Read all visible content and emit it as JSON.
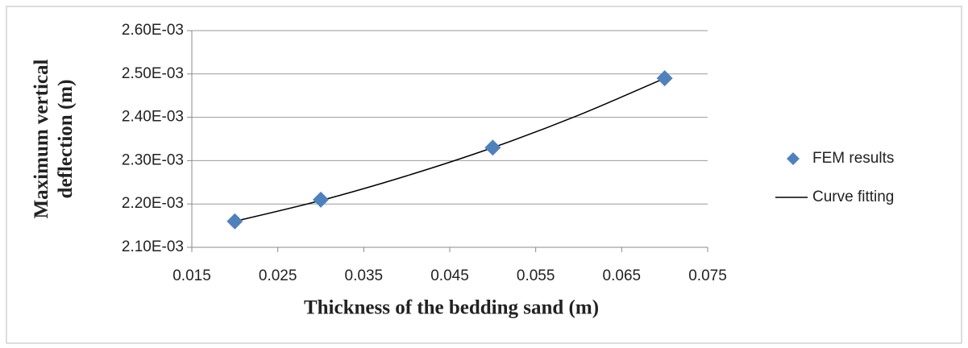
{
  "chart_data": {
    "type": "scatter",
    "xlabel": "Thickness of  the bedding sand (m)",
    "ylabel": "Maximum vertical deflection (m)",
    "xlim": [
      0.015,
      0.075
    ],
    "xticks": [
      0.015,
      0.025,
      0.035,
      0.045,
      0.055,
      0.065,
      0.075
    ],
    "ylim": [
      0.0021,
      0.0026
    ],
    "yticks": [
      {
        "value": 0.0021,
        "label": "2.10E-03"
      },
      {
        "value": 0.0022,
        "label": "2.20E-03"
      },
      {
        "value": 0.0023,
        "label": "2.30E-03"
      },
      {
        "value": 0.0024,
        "label": "2.40E-03"
      },
      {
        "value": 0.0025,
        "label": "2.50E-03"
      },
      {
        "value": 0.0026,
        "label": "2.60E-03"
      }
    ],
    "grid": true,
    "legend": "right",
    "series": [
      {
        "name": "FEM results",
        "type": "scatter",
        "color": "#4f81bd",
        "x": [
          0.02,
          0.03,
          0.05,
          0.07
        ],
        "values": [
          0.00216,
          0.00221,
          0.00233,
          0.00249
        ]
      },
      {
        "name": "Curve fitting",
        "type": "line",
        "color": "#000000",
        "x": [
          0.02,
          0.03,
          0.04,
          0.05,
          0.06,
          0.07
        ],
        "values": [
          0.00216,
          0.002208,
          0.002265,
          0.00233,
          0.002405,
          0.00249
        ]
      }
    ]
  }
}
